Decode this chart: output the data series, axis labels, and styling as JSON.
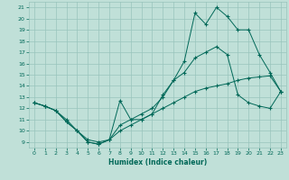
{
  "xlabel": "Humidex (Indice chaleur)",
  "xlim": [
    -0.5,
    23.5
  ],
  "ylim": [
    8.5,
    21.5
  ],
  "yticks": [
    9,
    10,
    11,
    12,
    13,
    14,
    15,
    16,
    17,
    18,
    19,
    20,
    21
  ],
  "xticks": [
    0,
    1,
    2,
    3,
    4,
    5,
    6,
    7,
    8,
    9,
    10,
    11,
    12,
    13,
    14,
    15,
    16,
    17,
    18,
    19,
    20,
    21,
    22,
    23
  ],
  "bg_color": "#c0e0d8",
  "grid_color": "#98c4bc",
  "line_color": "#006858",
  "line1_y": [
    12.5,
    12.2,
    11.8,
    10.8,
    10.0,
    9.0,
    8.8,
    9.2,
    12.7,
    11.0,
    11.0,
    11.5,
    13.2,
    14.5,
    16.2,
    20.5,
    19.5,
    21.0,
    20.2,
    19.0,
    19.0,
    16.8,
    15.2,
    13.5
  ],
  "line2_y": [
    12.5,
    12.2,
    11.8,
    10.8,
    10.0,
    9.0,
    8.8,
    9.2,
    10.5,
    11.0,
    11.5,
    12.0,
    13.0,
    14.5,
    15.2,
    16.5,
    17.0,
    17.5,
    16.8,
    13.2,
    12.5,
    12.2,
    12.0,
    13.5
  ],
  "line3_y": [
    12.5,
    12.2,
    11.8,
    11.0,
    10.0,
    9.2,
    9.0,
    9.2,
    10.0,
    10.5,
    11.0,
    11.5,
    12.0,
    12.5,
    13.0,
    13.5,
    13.8,
    14.0,
    14.2,
    14.5,
    14.7,
    14.8,
    14.9,
    13.5
  ]
}
